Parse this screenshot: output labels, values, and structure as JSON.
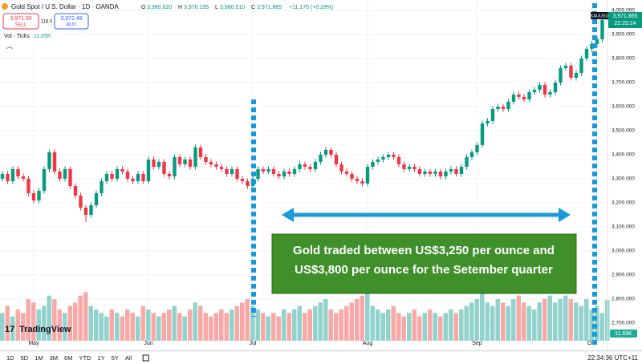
{
  "header": {
    "symbol": "Gold Spot / U.S. Dollar · 1D · OANDA",
    "open": "3,960.620",
    "high": "3,976.155",
    "low": "3,960.510",
    "close": "3,971.865",
    "change": "+11.175 (+0.28%)",
    "sell_price": "3,971.30",
    "sell": "SELL",
    "spread": "118.0",
    "buy_price": "3,972.48",
    "buy": "BUY",
    "volume_label": "Vol · Ticks",
    "volume_value": "11.69K",
    "price_tag_symbol": "XAUUSD",
    "price_tag_value": "3,971.865",
    "price_tag_time": "22:25:24",
    "volume_tag": "11.69K",
    "logo": "TradingView"
  },
  "toolbar": {
    "ranges": [
      "1D",
      "5D",
      "1M",
      "3M",
      "6M",
      "YTD",
      "1Y",
      "5Y",
      "All"
    ],
    "clock": "22:34:36 UTC+11"
  },
  "chart_data": {
    "type": "candlestick",
    "annotation": [
      "Gold traded between US$3,250 per ounce and",
      "US$3,800 per ounce for the Setember quarter"
    ],
    "categories": [
      null,
      null,
      null,
      null,
      null,
      null,
      "May",
      null,
      null,
      null,
      null,
      null,
      null,
      null,
      null,
      null,
      null,
      null,
      null,
      null,
      null,
      null,
      null,
      null,
      null,
      null,
      null,
      null,
      "Jun",
      null,
      null,
      null,
      null,
      null,
      null,
      null,
      null,
      null,
      null,
      null,
      null,
      null,
      null,
      null,
      null,
      null,
      null,
      null,
      "Jul",
      null,
      null,
      null,
      null,
      null,
      null,
      null,
      null,
      null,
      null,
      null,
      null,
      null,
      null,
      null,
      null,
      null,
      null,
      null,
      null,
      null,
      "Aug",
      null,
      null,
      null,
      null,
      null,
      null,
      null,
      null,
      null,
      null,
      null,
      null,
      null,
      null,
      null,
      null,
      null,
      null,
      null,
      null,
      "Sep",
      null,
      null,
      null,
      null,
      null,
      null,
      null,
      null,
      null,
      null,
      null,
      null,
      null,
      null,
      null,
      null,
      null,
      null,
      null,
      null,
      null,
      "Oct",
      null,
      null,
      null
    ],
    "up_color": "#089981",
    "down_color": "#f23645",
    "volume_up_color": "#92d2cc",
    "volume_down_color": "#f7a9a7",
    "ylim": [
      2610,
      4043
    ],
    "yticks": [
      {
        "value": 2700,
        "label": "2,700.000"
      },
      {
        "value": 2800,
        "label": "2,800.000"
      },
      {
        "value": 2900,
        "label": "2,900.000"
      },
      {
        "value": 3000,
        "label": "3,000.000"
      },
      {
        "value": 3100,
        "label": "3,100.000"
      },
      {
        "value": 3200,
        "label": "3,200.000"
      },
      {
        "value": 3300,
        "label": "3,300.000"
      },
      {
        "value": 3400,
        "label": "3,400.000"
      },
      {
        "value": 3500,
        "label": "3,500.000"
      },
      {
        "value": 3600,
        "label": "3,600.000"
      },
      {
        "value": 3700,
        "label": "3,700.000"
      },
      {
        "value": 3800,
        "label": "3,800.000"
      },
      {
        "value": 3900,
        "label": "3,900.000"
      },
      {
        "value": 4000,
        "label": "4,000.000"
      }
    ],
    "grid": true,
    "series": [
      {
        "name": "XAUUSD",
        "values": [
          [
            3300,
            3332,
            3288,
            3320
          ],
          [
            3320,
            3332,
            3278,
            3290
          ],
          [
            3290,
            3352,
            3278,
            3340
          ],
          [
            3340,
            3352,
            3298,
            3310
          ],
          [
            3310,
            3322,
            3288,
            3300
          ],
          [
            3300,
            3312,
            3228,
            3240
          ],
          [
            3240,
            3252,
            3198,
            3210
          ],
          [
            3210,
            3262,
            3198,
            3250
          ],
          [
            3250,
            3352,
            3238,
            3340
          ],
          [
            3340,
            3422,
            3328,
            3410
          ],
          [
            3410,
            3422,
            3318,
            3330
          ],
          [
            3330,
            3342,
            3288,
            3300
          ],
          [
            3300,
            3352,
            3288,
            3340
          ],
          [
            3340,
            3352,
            3258,
            3270
          ],
          [
            3270,
            3282,
            3218,
            3230
          ],
          [
            3230,
            3242,
            3168,
            3180
          ],
          [
            3180,
            3192,
            3120,
            3150
          ],
          [
            3150,
            3202,
            3138,
            3190
          ],
          [
            3190,
            3252,
            3178,
            3240
          ],
          [
            3240,
            3302,
            3228,
            3290
          ],
          [
            3290,
            3332,
            3278,
            3320
          ],
          [
            3320,
            3332,
            3288,
            3300
          ],
          [
            3300,
            3352,
            3288,
            3340
          ],
          [
            3340,
            3352,
            3318,
            3330
          ],
          [
            3330,
            3342,
            3288,
            3300
          ],
          [
            3300,
            3312,
            3278,
            3290
          ],
          [
            3290,
            3332,
            3278,
            3320
          ],
          [
            3320,
            3332,
            3278,
            3290
          ],
          [
            3290,
            3392,
            3278,
            3380
          ],
          [
            3380,
            3392,
            3338,
            3350
          ],
          [
            3350,
            3382,
            3338,
            3370
          ],
          [
            3370,
            3382,
            3308,
            3320
          ],
          [
            3320,
            3332,
            3298,
            3310
          ],
          [
            3310,
            3402,
            3298,
            3390
          ],
          [
            3390,
            3402,
            3348,
            3360
          ],
          [
            3360,
            3392,
            3348,
            3380
          ],
          [
            3380,
            3392,
            3338,
            3350
          ],
          [
            3350,
            3442,
            3338,
            3430
          ],
          [
            3430,
            3442,
            3378,
            3390
          ],
          [
            3390,
            3402,
            3358,
            3370
          ],
          [
            3370,
            3382,
            3348,
            3360
          ],
          [
            3360,
            3372,
            3338,
            3350
          ],
          [
            3350,
            3362,
            3328,
            3340
          ],
          [
            3340,
            3352,
            3308,
            3320
          ],
          [
            3320,
            3352,
            3308,
            3340
          ],
          [
            3340,
            3352,
            3288,
            3300
          ],
          [
            3300,
            3312,
            3278,
            3290
          ],
          [
            3290,
            3302,
            3258,
            3270
          ],
          [
            3270,
            3312,
            3258,
            3300
          ],
          [
            3300,
            3352,
            3288,
            3340
          ],
          [
            3340,
            3352,
            3318,
            3330
          ],
          [
            3330,
            3352,
            3318,
            3340
          ],
          [
            3340,
            3352,
            3308,
            3320
          ],
          [
            3320,
            3332,
            3298,
            3310
          ],
          [
            3310,
            3342,
            3298,
            3330
          ],
          [
            3330,
            3342,
            3308,
            3320
          ],
          [
            3320,
            3352,
            3308,
            3340
          ],
          [
            3340,
            3372,
            3328,
            3360
          ],
          [
            3360,
            3372,
            3338,
            3350
          ],
          [
            3350,
            3362,
            3328,
            3340
          ],
          [
            3340,
            3382,
            3328,
            3370
          ],
          [
            3370,
            3412,
            3358,
            3400
          ],
          [
            3400,
            3432,
            3388,
            3420
          ],
          [
            3420,
            3432,
            3388,
            3400
          ],
          [
            3400,
            3412,
            3348,
            3360
          ],
          [
            3360,
            3372,
            3318,
            3330
          ],
          [
            3330,
            3342,
            3308,
            3320
          ],
          [
            3320,
            3332,
            3288,
            3300
          ],
          [
            3300,
            3312,
            3278,
            3290
          ],
          [
            3290,
            3302,
            3268,
            3280
          ],
          [
            3280,
            3362,
            3268,
            3350
          ],
          [
            3350,
            3382,
            3338,
            3370
          ],
          [
            3370,
            3392,
            3358,
            3380
          ],
          [
            3380,
            3402,
            3368,
            3390
          ],
          [
            3390,
            3412,
            3378,
            3400
          ],
          [
            3400,
            3412,
            3378,
            3390
          ],
          [
            3390,
            3402,
            3348,
            3360
          ],
          [
            3360,
            3372,
            3328,
            3340
          ],
          [
            3340,
            3362,
            3328,
            3350
          ],
          [
            3350,
            3362,
            3328,
            3340
          ],
          [
            3340,
            3352,
            3308,
            3320
          ],
          [
            3320,
            3342,
            3308,
            3330
          ],
          [
            3330,
            3342,
            3308,
            3320
          ],
          [
            3320,
            3342,
            3308,
            3330
          ],
          [
            3330,
            3342,
            3298,
            3310
          ],
          [
            3310,
            3342,
            3298,
            3330
          ],
          [
            3330,
            3352,
            3318,
            3340
          ],
          [
            3340,
            3352,
            3308,
            3320
          ],
          [
            3320,
            3362,
            3308,
            3350
          ],
          [
            3350,
            3402,
            3338,
            3390
          ],
          [
            3390,
            3422,
            3378,
            3410
          ],
          [
            3410,
            3452,
            3398,
            3440
          ],
          [
            3440,
            3542,
            3428,
            3530
          ],
          [
            3530,
            3552,
            3518,
            3540
          ],
          [
            3540,
            3602,
            3528,
            3590
          ],
          [
            3590,
            3612,
            3578,
            3600
          ],
          [
            3600,
            3612,
            3578,
            3590
          ],
          [
            3590,
            3632,
            3578,
            3620
          ],
          [
            3620,
            3662,
            3608,
            3650
          ],
          [
            3650,
            3662,
            3628,
            3640
          ],
          [
            3640,
            3652,
            3618,
            3630
          ],
          [
            3630,
            3672,
            3618,
            3660
          ],
          [
            3660,
            3682,
            3648,
            3670
          ],
          [
            3670,
            3702,
            3658,
            3690
          ],
          [
            3690,
            3702,
            3638,
            3650
          ],
          [
            3650,
            3672,
            3638,
            3660
          ],
          [
            3660,
            3712,
            3648,
            3700
          ],
          [
            3700,
            3772,
            3688,
            3760
          ],
          [
            3760,
            3782,
            3748,
            3770
          ],
          [
            3770,
            3782,
            3708,
            3720
          ],
          [
            3720,
            3752,
            3708,
            3740
          ],
          [
            3740,
            3812,
            3728,
            3800
          ],
          [
            3800,
            3852,
            3788,
            3840
          ],
          [
            3840,
            3872,
            3828,
            3860
          ],
          [
            3860,
            3892,
            3848,
            3880
          ],
          [
            3880,
            3972,
            3868,
            3960.69
          ],
          [
            3960.62,
            3976.155,
            3960.51,
            3971.865
          ]
        ]
      },
      {
        "name": "Vol · Ticks",
        "values": [
          8,
          10,
          7,
          9,
          8,
          12,
          11,
          9,
          10,
          13,
          12,
          9,
          8,
          10,
          11,
          13,
          14,
          10,
          9,
          8,
          7,
          9,
          8,
          7,
          9,
          8,
          7,
          10,
          9,
          8,
          7,
          8,
          9,
          10,
          8,
          7,
          9,
          11,
          10,
          8,
          7,
          8,
          9,
          8,
          9,
          10,
          11,
          12,
          10,
          9,
          8,
          7,
          8,
          7,
          9,
          8,
          9,
          10,
          8,
          9,
          10,
          11,
          12,
          9,
          8,
          9,
          10,
          11,
          12,
          13,
          15,
          10,
          9,
          8,
          9,
          10,
          8,
          7,
          8,
          9,
          7,
          8,
          9,
          8,
          7,
          8,
          9,
          8,
          9,
          10,
          11,
          12,
          14,
          11,
          10,
          12,
          11,
          10,
          12,
          13,
          11,
          10,
          9,
          11,
          12,
          13,
          11,
          12,
          13,
          12,
          11,
          10,
          12,
          9,
          10,
          8,
          11.69
        ]
      }
    ]
  }
}
